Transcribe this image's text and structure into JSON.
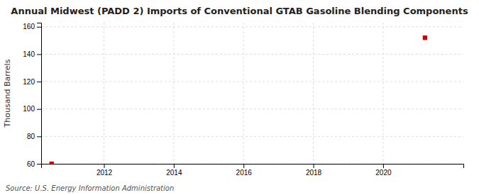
{
  "chart_data": {
    "type": "scatter",
    "title": "Annual Midwest (PADD 2) Imports of Conventional GTAB Gasoline Blending Components",
    "ylabel": "Thousand Barrels",
    "source": "Source: U.S. Energy Information Administration",
    "x": [
      2010.5,
      2021.2
    ],
    "values": [
      60,
      152
    ],
    "color": "#cc0000",
    "marker": "square",
    "xlim": [
      2010.2,
      2022.3
    ],
    "ylim": [
      60,
      163
    ],
    "xticks": [
      2012,
      2014,
      2016,
      2018,
      2020
    ],
    "yticks": [
      60,
      80,
      100,
      120,
      140,
      160
    ],
    "grid": true
  }
}
